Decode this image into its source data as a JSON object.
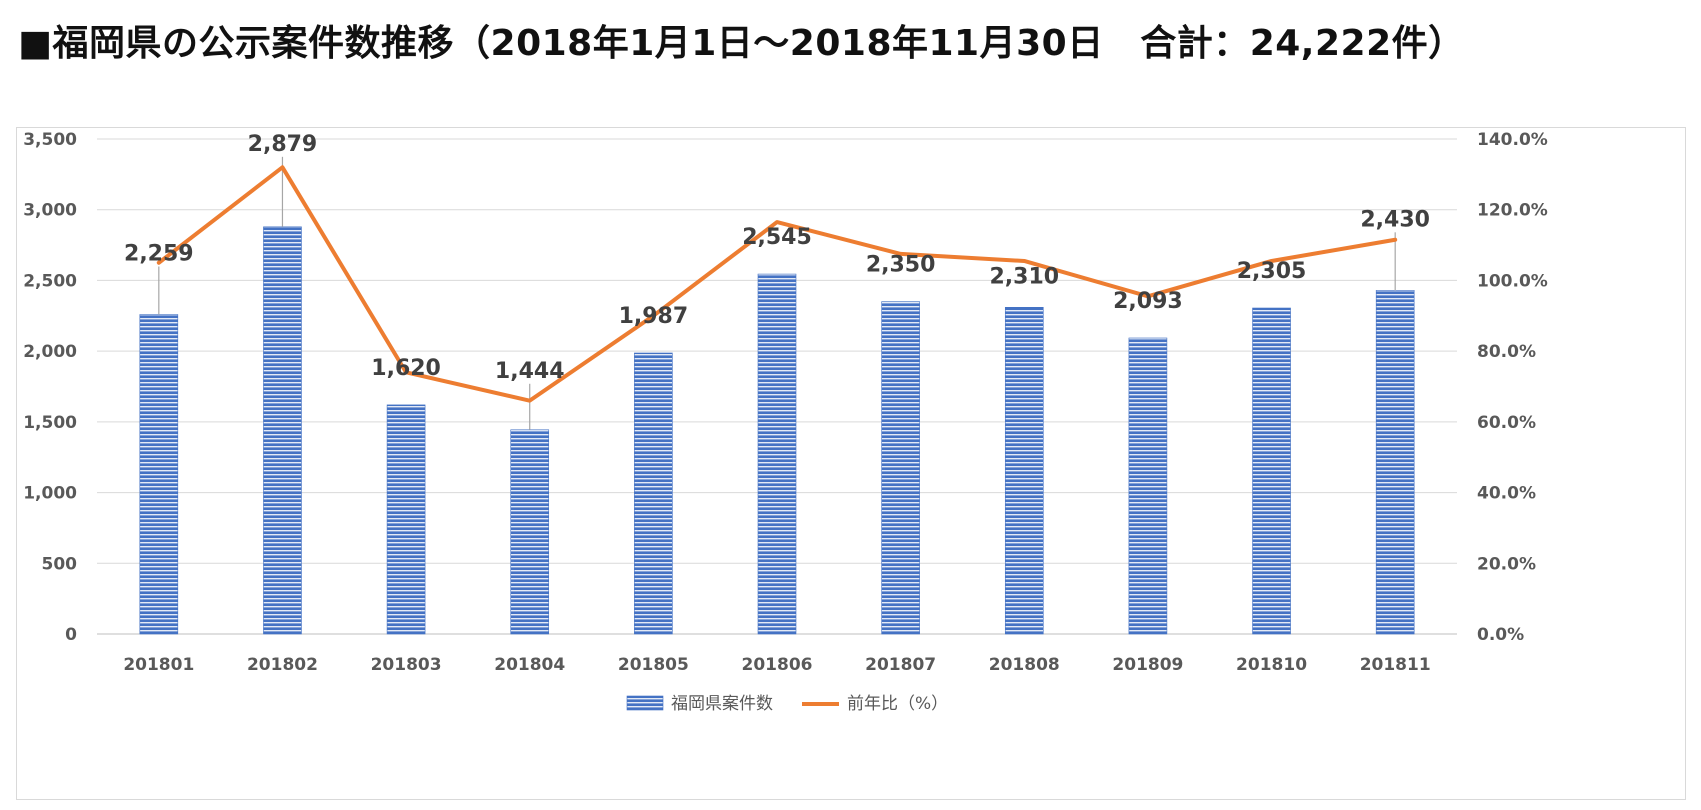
{
  "page_title": "■福岡県の公示案件数推移（2018年1月1日～2018年11月30日　合計：24,222件）",
  "colors": {
    "bar_fill": "#4472c4",
    "bar_stripe": "#ffffff",
    "line": "#ed7d31",
    "grid": "#d9d9d9",
    "axis_text": "#595959",
    "label_text": "#404040"
  },
  "chart_data": {
    "type": "bar",
    "categories": [
      "201801",
      "201802",
      "201803",
      "201804",
      "201805",
      "201806",
      "201807",
      "201808",
      "201809",
      "201810",
      "201811"
    ],
    "series": [
      {
        "name": "福岡県案件数",
        "type": "bar",
        "axis": "left",
        "values": [
          2259,
          2879,
          1620,
          1444,
          1987,
          2545,
          2350,
          2310,
          2093,
          2305,
          2430
        ],
        "labels": [
          "2,259",
          "2,879",
          "1,620",
          "1,444",
          "1,987",
          "2,545",
          "2,350",
          "2,310",
          "2,093",
          "2,305",
          "2,430"
        ]
      },
      {
        "name": "前年比（%）",
        "type": "line",
        "axis": "right",
        "values": [
          105.0,
          132.0,
          74.0,
          66.0,
          90.0,
          116.5,
          107.5,
          105.5,
          95.5,
          105.5,
          111.5
        ]
      }
    ],
    "y_left": {
      "ylim": [
        0,
        3500
      ],
      "ticks": [
        0,
        500,
        1000,
        1500,
        2000,
        2500,
        3000,
        3500
      ],
      "tick_labels": [
        "0",
        "500",
        "1,000",
        "1,500",
        "2,000",
        "2,500",
        "3,000",
        "3,500"
      ]
    },
    "y_right": {
      "ylim": [
        0,
        140
      ],
      "tick_labels": [
        "0.0%",
        "20.0%",
        "40.0%",
        "60.0%",
        "80.0%",
        "100.0%",
        "120.0%",
        "140.0%"
      ]
    },
    "title": "",
    "xlabel": "",
    "grid": true,
    "legend_position": "bottom"
  }
}
